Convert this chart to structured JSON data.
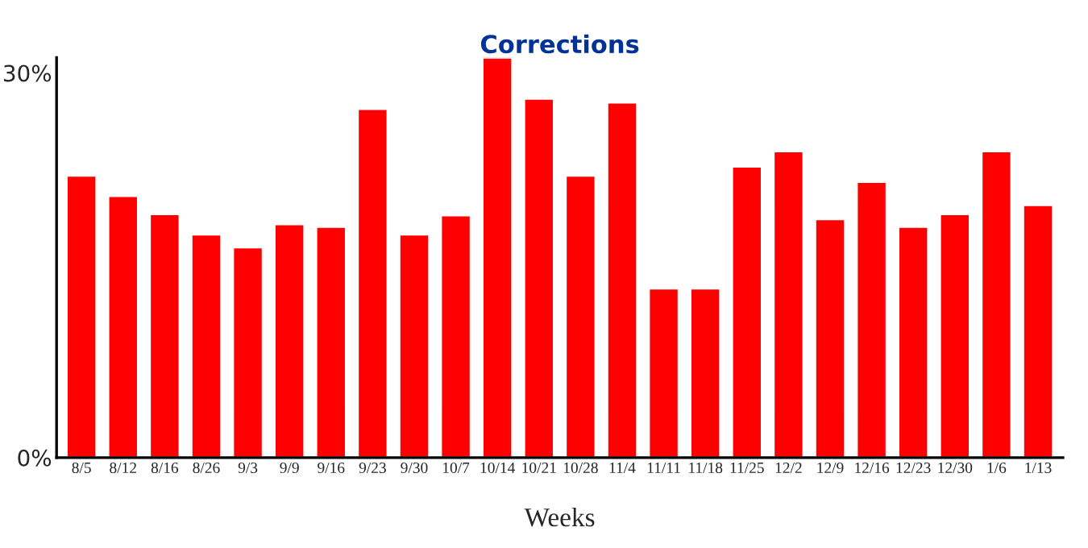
{
  "chart_data": {
    "type": "bar",
    "title": "Corrections",
    "xlabel": "Weeks",
    "categories": [
      "8/5",
      "8/12",
      "8/16",
      "8/26",
      "9/3",
      "9/9",
      "9/16",
      "9/23",
      "9/30",
      "10/7",
      "10/14",
      "10/21",
      "10/28",
      "11/4",
      "11/11",
      "11/18",
      "11/25",
      "12/2",
      "12/9",
      "12/16",
      "12/23",
      "12/30",
      "1/6",
      "1/13"
    ],
    "values": [
      22.0,
      20.4,
      19.0,
      17.4,
      16.4,
      18.2,
      18.0,
      27.2,
      17.4,
      18.9,
      31.2,
      28.0,
      22.0,
      27.7,
      13.2,
      13.2,
      22.7,
      23.9,
      18.6,
      21.5,
      18.0,
      19.0,
      23.9,
      19.7
    ],
    "color": "#ff0000",
    "ylim": [
      0,
      31.2
    ],
    "yticks": [
      {
        "value": 0,
        "label": "0%"
      },
      {
        "value": 30,
        "label": "30%"
      }
    ],
    "grid": false
  }
}
